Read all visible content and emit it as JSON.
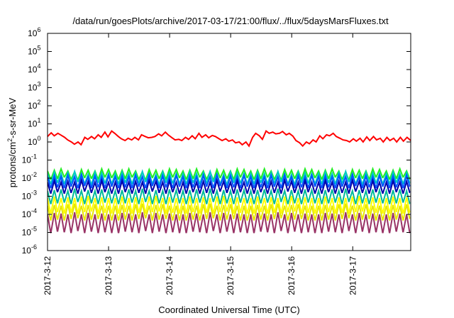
{
  "chart_data": {
    "type": "line",
    "title": "/data/run/goesPlots/archive/2017-03-17/21:00/flux/../flux/5daysMarsFluxes.txt",
    "xlabel": "Coordinated Universal Time (UTC)",
    "ylabel_parts": {
      "main": "protons/cm",
      "sup": "2",
      "rest": "-s-sr-MeV"
    },
    "yscale": "log",
    "ylim_exp": [
      -6,
      6
    ],
    "y_tick_labels": [
      {
        "base": "10",
        "exp": "-6",
        "value": -6
      },
      {
        "base": "10",
        "exp": "-5",
        "value": -5
      },
      {
        "base": "10",
        "exp": "-4",
        "value": -4
      },
      {
        "base": "10",
        "exp": "-3",
        "value": -3
      },
      {
        "base": "10",
        "exp": "-2",
        "value": -2
      },
      {
        "base": "10",
        "exp": "-1",
        "value": -1
      },
      {
        "base": "10",
        "exp": "0",
        "value": 0
      },
      {
        "base": "10",
        "exp": "1",
        "value": 1
      },
      {
        "base": "10",
        "exp": "2",
        "value": 2
      },
      {
        "base": "10",
        "exp": "3",
        "value": 3
      },
      {
        "base": "10",
        "exp": "4",
        "value": 4
      },
      {
        "base": "10",
        "exp": "5",
        "value": 5
      },
      {
        "base": "10",
        "exp": "6",
        "value": 6
      }
    ],
    "xlim_days": [
      0,
      5.95
    ],
    "x_ticks": [
      {
        "label": "2017-3-12",
        "day": 0
      },
      {
        "label": "2017-3-13",
        "day": 1
      },
      {
        "label": "2017-3-14",
        "day": 2
      },
      {
        "label": "2017-3-15",
        "day": 3
      },
      {
        "label": "2017-3-16",
        "day": 4
      },
      {
        "label": "2017-3-17",
        "day": 5
      }
    ],
    "grid": false,
    "legend": "none",
    "series": [
      {
        "color": "#ff0000",
        "x": [
          0,
          0.06,
          0.11,
          0.17,
          0.22,
          0.28,
          0.33,
          0.39,
          0.44,
          0.5,
          0.55,
          0.61,
          0.66,
          0.72,
          0.77,
          0.83,
          0.88,
          0.94,
          0.99,
          1.05,
          1.1,
          1.16,
          1.21,
          1.27,
          1.32,
          1.38,
          1.43,
          1.49,
          1.54,
          1.6,
          1.65,
          1.71,
          1.76,
          1.82,
          1.87,
          1.93,
          1.98,
          2.04,
          2.09,
          2.15,
          2.2,
          2.26,
          2.31,
          2.37,
          2.42,
          2.48,
          2.53,
          2.59,
          2.64,
          2.7,
          2.75,
          2.81,
          2.86,
          2.92,
          2.97,
          3.03,
          3.08,
          3.14,
          3.19,
          3.25,
          3.3,
          3.36,
          3.41,
          3.47,
          3.52,
          3.58,
          3.63,
          3.69,
          3.74,
          3.8,
          3.85,
          3.91,
          3.96,
          4.02,
          4.07,
          4.13,
          4.18,
          4.24,
          4.29,
          4.35,
          4.4,
          4.46,
          4.51,
          4.57,
          4.62,
          4.68,
          4.73,
          4.79,
          4.84,
          4.9,
          4.95,
          5.01,
          5.06,
          5.12,
          5.17,
          5.23,
          5.28,
          5.34,
          5.39,
          5.45,
          5.5,
          5.56,
          5.61,
          5.67,
          5.72,
          5.78,
          5.83,
          5.89,
          5.95
        ],
        "y": [
          2.0,
          3.2,
          2.2,
          3.0,
          2.4,
          1.8,
          1.3,
          1.0,
          0.75,
          1.0,
          0.7,
          1.8,
          1.4,
          2.0,
          1.5,
          2.5,
          1.8,
          3.5,
          1.9,
          4.0,
          3.0,
          2.0,
          1.5,
          1.2,
          1.6,
          1.3,
          1.8,
          1.3,
          2.5,
          2.0,
          1.7,
          1.8,
          2.0,
          2.8,
          2.2,
          3.5,
          2.4,
          1.7,
          1.3,
          1.4,
          1.2,
          1.8,
          1.4,
          2.2,
          1.5,
          3.0,
          1.8,
          2.5,
          1.7,
          2.3,
          2.0,
          1.5,
          1.2,
          1.5,
          1.1,
          1.3,
          0.9,
          1.0,
          0.7,
          1.0,
          0.6,
          1.8,
          3.0,
          2.2,
          1.4,
          4.0,
          3.0,
          3.5,
          2.8,
          3.0,
          3.8,
          2.5,
          3.0,
          2.1,
          1.2,
          0.9,
          0.6,
          1.0,
          0.8,
          1.3,
          1.0,
          2.2,
          1.5,
          2.5,
          2.2,
          3.0,
          2.0,
          1.6,
          1.3,
          1.2,
          1.0,
          1.5,
          1.1,
          1.6,
          1.0,
          1.9,
          1.2,
          2.0,
          1.3,
          1.6,
          1.0,
          1.8,
          1.2,
          1.6,
          1.0,
          1.8,
          1.1,
          1.8,
          1.2
        ]
      },
      {
        "color": "#22ee22",
        "base": 0.025,
        "dip": 0.009,
        "period_days": 0.111,
        "amp_peaks": [
          1,
          1.1,
          1.3,
          1,
          0.9,
          1.2,
          1.1,
          1,
          1.3,
          1.2
        ]
      },
      {
        "color": "#00c8c8",
        "base": 0.018,
        "dip": 0.005,
        "period_days": 0.111,
        "amp_peaks": [
          1,
          1.2,
          1,
          1.1,
          1.3,
          1,
          0.9,
          1.2,
          1.1,
          1
        ]
      },
      {
        "color": "#0055ff",
        "base": 0.012,
        "dip": 0.003,
        "period_days": 0.111,
        "amp_peaks": [
          1,
          1.1,
          1,
          1.2,
          1,
          1.3,
          1,
          1.1,
          1,
          1.2
        ]
      },
      {
        "color": "#0000aa",
        "base": 0.006,
        "dip": 0.0015,
        "period_days": 0.111,
        "amp_peaks": [
          1,
          1.2,
          1,
          1.1,
          1,
          1.3,
          1.1,
          1,
          1.2,
          1
        ]
      },
      {
        "color": "#00bb99",
        "base": 0.002,
        "dip": 0.0004,
        "period_days": 0.111,
        "amp_peaks": [
          1,
          1.1,
          1.2,
          1,
          1.3,
          1,
          1.1,
          1,
          1.2,
          1.1
        ]
      },
      {
        "color": "#ffff00",
        "base": 0.0008,
        "dip": 0.00012,
        "period_days": 0.111,
        "amp_peaks": [
          1,
          1.2,
          1,
          1.1,
          1,
          1.2,
          1.3,
          1,
          1.1,
          1
        ]
      },
      {
        "color": "#e6e600",
        "base": 0.0003,
        "dip": 5e-05,
        "period_days": 0.111,
        "amp_peaks": [
          1,
          1.1,
          1,
          1.2,
          1.3,
          1,
          1.1,
          1.2,
          1,
          1
        ]
      },
      {
        "color": "#993366",
        "base": 0.0001,
        "dip": 1e-05,
        "period_days": 0.111,
        "amp_peaks": [
          1,
          1.2,
          1.1,
          1,
          1.3,
          1,
          1.2,
          1,
          1.1,
          1
        ]
      }
    ]
  }
}
